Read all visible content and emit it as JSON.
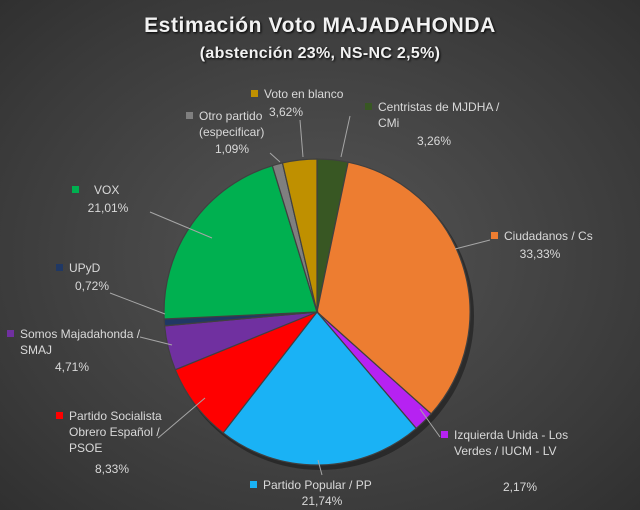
{
  "title": "Estimación Voto MAJADAHONDA",
  "subtitle": "(abstención 23%, NS-NC 2,5%)",
  "chart_data": {
    "type": "pie",
    "start_angle_deg": 0,
    "slices": [
      {
        "name": "Centristas de MJDHA / CMi",
        "label_lines": [
          "Centristas de MJDHA /",
          "CMi"
        ],
        "value": 3.26,
        "value_label": "3,26%",
        "color": "#385723"
      },
      {
        "name": "Ciudadanos / Cs",
        "label_lines": [
          "Ciudadanos / Cs"
        ],
        "value": 33.33,
        "value_label": "33,33%",
        "color": "#ed7d31"
      },
      {
        "name": "Izquierda Unida - Los Verdes / IUCM - LV",
        "label_lines": [
          "Izquierda Unida - Los",
          "Verdes / IUCM - LV"
        ],
        "value": 2.17,
        "value_label": "2,17%",
        "color": "#b622f2"
      },
      {
        "name": "Partido Popular / PP",
        "label_lines": [
          "Partido Popular / PP"
        ],
        "value": 21.74,
        "value_label": "21,74%",
        "color": "#1ab2f5"
      },
      {
        "name": "Partido Socialista Obrero Español / PSOE",
        "label_lines": [
          "Partido Socialista",
          "Obrero Español /",
          "PSOE"
        ],
        "value": 8.33,
        "value_label": "8,33%",
        "color": "#ff0000"
      },
      {
        "name": "Somos Majadahonda / SMAJ",
        "label_lines": [
          "Somos Majadahonda /",
          "SMAJ"
        ],
        "value": 4.71,
        "value_label": "4,71%",
        "color": "#7030a0"
      },
      {
        "name": "UPyD",
        "label_lines": [
          "UPyD"
        ],
        "value": 0.72,
        "value_label": "0,72%",
        "color": "#203864"
      },
      {
        "name": "VOX",
        "label_lines": [
          "VOX"
        ],
        "value": 21.01,
        "value_label": "21,01%",
        "color": "#00b050"
      },
      {
        "name": "Otro partido (especificar)",
        "label_lines": [
          "Otro partido",
          "(especificar)"
        ],
        "value": 1.09,
        "value_label": "1,09%",
        "color": "#7f7f7f"
      },
      {
        "name": "Voto en blanco",
        "label_lines": [
          "Voto en blanco"
        ],
        "value": 3.62,
        "value_label": "3,62%",
        "color": "#bf9000"
      }
    ]
  }
}
